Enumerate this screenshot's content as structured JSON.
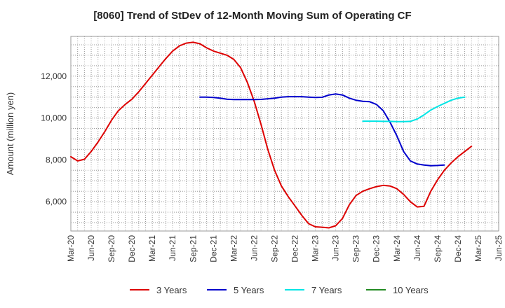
{
  "chart_data": {
    "type": "line",
    "title": "[8060]  Trend of StDev of 12-Month Moving Sum of Operating CF",
    "xlabel": "",
    "ylabel": "Amount (million yen)",
    "x_ticks": [
      "Mar-20",
      "Jun-20",
      "Sep-20",
      "Dec-20",
      "Mar-21",
      "Jun-21",
      "Sep-21",
      "Dec-21",
      "Mar-22",
      "Jun-22",
      "Sep-22",
      "Dec-22",
      "Mar-23",
      "Jun-23",
      "Sep-23",
      "Dec-23",
      "Mar-24",
      "Jun-24",
      "Sep-24",
      "Dec-24",
      "Mar-25",
      "Jun-25"
    ],
    "y_ticks": [
      6000,
      8000,
      10000,
      12000
    ],
    "ylim": [
      4600,
      13900
    ],
    "grid": true,
    "legend_position": "bottom",
    "series": [
      {
        "name": "3 Years",
        "color": "#dd0000",
        "values": [
          8150,
          7950,
          8030,
          8400,
          8850,
          9350,
          9900,
          10350,
          10650,
          10900,
          11250,
          11650,
          12050,
          12450,
          12850,
          13200,
          13450,
          13580,
          13620,
          13550,
          13350,
          13200,
          13100,
          13000,
          12800,
          12400,
          11700,
          10800,
          9700,
          8500,
          7500,
          6750,
          6250,
          5800,
          5350,
          4950,
          4800,
          4780,
          4750,
          4850,
          5200,
          5850,
          6300,
          6500,
          6620,
          6720,
          6780,
          6750,
          6620,
          6350,
          6000,
          5750,
          5780,
          6500,
          7050,
          7500,
          7850,
          8150,
          8400,
          8650
        ]
      },
      {
        "name": "5 Years",
        "color": "#0000cc",
        "values": [
          null,
          null,
          null,
          null,
          null,
          null,
          null,
          null,
          null,
          null,
          null,
          null,
          null,
          null,
          null,
          null,
          null,
          null,
          null,
          11000,
          11000,
          10980,
          10950,
          10900,
          10880,
          10880,
          10880,
          10880,
          10890,
          10920,
          10950,
          11000,
          11020,
          11020,
          11020,
          11000,
          10980,
          10990,
          11100,
          11150,
          11100,
          10950,
          10850,
          10800,
          10780,
          10650,
          10350,
          9800,
          9150,
          8400,
          7950,
          7800,
          7750,
          7720,
          7730,
          7750
        ]
      },
      {
        "name": "7 Years",
        "color": "#00e5e5",
        "values": [
          null,
          null,
          null,
          null,
          null,
          null,
          null,
          null,
          null,
          null,
          null,
          null,
          null,
          null,
          null,
          null,
          null,
          null,
          null,
          null,
          null,
          null,
          null,
          null,
          null,
          null,
          null,
          null,
          null,
          null,
          null,
          null,
          null,
          null,
          null,
          null,
          null,
          null,
          null,
          null,
          null,
          null,
          null,
          9850,
          9850,
          9850,
          9840,
          9840,
          9830,
          9830,
          9840,
          9950,
          10150,
          10380,
          10550,
          10700,
          10850,
          10950,
          11000
        ]
      },
      {
        "name": "10 Years",
        "color": "#228b22",
        "values": []
      }
    ]
  }
}
